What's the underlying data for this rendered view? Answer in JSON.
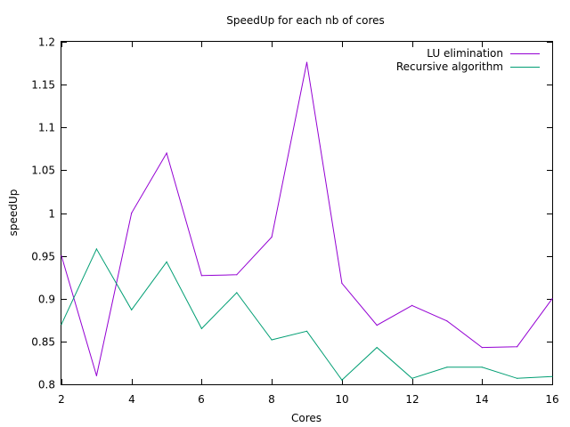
{
  "chart_data": {
    "type": "line",
    "title": "SpeedUp for each nb of cores",
    "xlabel": "Cores",
    "ylabel": "speedUp",
    "xlim": [
      2,
      16
    ],
    "ylim": [
      0.8,
      1.2
    ],
    "xticks": [
      2,
      4,
      6,
      8,
      10,
      12,
      14,
      16
    ],
    "yticks": [
      0.8,
      0.85,
      0.9,
      0.95,
      1,
      1.05,
      1.1,
      1.15,
      1.2
    ],
    "ytick_labels": [
      "0.8",
      "0.85",
      "0.9",
      "0.95",
      "1",
      "1.05",
      "1.1",
      "1.15",
      "1.2"
    ],
    "legend_position": "top-right",
    "grid": false,
    "x": [
      2,
      3,
      4,
      5,
      6,
      7,
      8,
      9,
      10,
      11,
      12,
      13,
      14,
      15,
      16
    ],
    "series": [
      {
        "name": "LU elimination",
        "color": "#9400d3",
        "values": [
          0.95,
          0.81,
          1.0,
          1.07,
          0.927,
          0.928,
          0.972,
          1.176,
          0.918,
          0.869,
          0.892,
          0.874,
          0.843,
          0.844,
          0.9
        ]
      },
      {
        "name": "Recursive algorithm",
        "color": "#009e73",
        "values": [
          0.87,
          0.958,
          0.887,
          0.943,
          0.865,
          0.907,
          0.852,
          0.862,
          0.805,
          0.843,
          0.807,
          0.82,
          0.82,
          0.807,
          0.809
        ]
      }
    ]
  }
}
